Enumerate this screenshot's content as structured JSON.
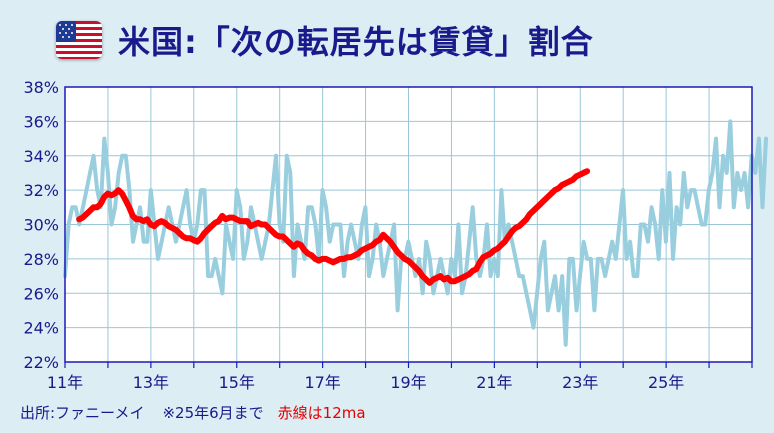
{
  "title": "米国:「次の転居先は賃貸」割合",
  "footer": {
    "source": "出所:ファニーメイ",
    "note": "※25年6月まで",
    "red_note": "赤線は12ma"
  },
  "colors": {
    "title": "#1a1a8c",
    "raw_series": "#99cede",
    "ma_series": "#ff0000",
    "axis": "#1a1ab8",
    "grid": "#9ac7d8",
    "background": "#dcedf4"
  },
  "chart_data": {
    "type": "line",
    "xlabel": "",
    "ylabel": "",
    "x_range": [
      2011.0,
      2027.0
    ],
    "ylim": [
      22,
      38
    ],
    "y_ticks": [
      "22%",
      "24%",
      "26%",
      "28%",
      "30%",
      "32%",
      "34%",
      "36%",
      "38%"
    ],
    "x_ticks": [
      {
        "x": 2011,
        "label": "11年"
      },
      {
        "x": 2013,
        "label": "13年"
      },
      {
        "x": 2015,
        "label": "15年"
      },
      {
        "x": 2017,
        "label": "17年"
      },
      {
        "x": 2019,
        "label": "19年"
      },
      {
        "x": 2021,
        "label": "21年"
      },
      {
        "x": 2023,
        "label": "23年"
      },
      {
        "x": 2025,
        "label": "25年"
      }
    ],
    "grid": true,
    "series": [
      {
        "color": "#99cede",
        "x_start": 2011.0,
        "step": 0.0833,
        "values": [
          27,
          30,
          31,
          31,
          30,
          31,
          32,
          33,
          34,
          32,
          31,
          35,
          33,
          30,
          31,
          33,
          34,
          34,
          32,
          29,
          30,
          31,
          29,
          29,
          32,
          30,
          28,
          29,
          30,
          31,
          30,
          29,
          30,
          31,
          32,
          30,
          29,
          30,
          32,
          32,
          27,
          27,
          28,
          27,
          26,
          30,
          29,
          28,
          32,
          31,
          28,
          29,
          31,
          30,
          29,
          28,
          29,
          30,
          32,
          34,
          30,
          29,
          34,
          33,
          27,
          30,
          29,
          28,
          31,
          31,
          30,
          28,
          32,
          31,
          29,
          30,
          30,
          30,
          27,
          29,
          30,
          29,
          28,
          30,
          31,
          27,
          28,
          30,
          29,
          27,
          28,
          29,
          30,
          25,
          28,
          28,
          29,
          28,
          27,
          28,
          26,
          29,
          28,
          26,
          27,
          28,
          27,
          26,
          28,
          27,
          30,
          26,
          27,
          29,
          31,
          28,
          27,
          28,
          30,
          27,
          28,
          27,
          32,
          29,
          30,
          29,
          28,
          27,
          27,
          26,
          25,
          24,
          26,
          28,
          29,
          25,
          26,
          27,
          25,
          27,
          23,
          28,
          28,
          25,
          27,
          29,
          28,
          28,
          25,
          28,
          28,
          27,
          28,
          29,
          28,
          30,
          32,
          28,
          29,
          27,
          27,
          30,
          30,
          29,
          31,
          30,
          28,
          32,
          29,
          33,
          28,
          31,
          30,
          33,
          31,
          32,
          32,
          31,
          30,
          30,
          32,
          33,
          35,
          31,
          34,
          33,
          36,
          31,
          33,
          32,
          33,
          31,
          34,
          33,
          35,
          31,
          35
        ]
      },
      {
        "color": "#ff0000",
        "x_start": 2011.33,
        "step": 0.0833,
        "values": [
          30.3,
          30.4,
          30.6,
          30.8,
          31.0,
          31.0,
          31.2,
          31.6,
          31.8,
          31.7,
          31.8,
          32.0,
          31.8,
          31.4,
          31.0,
          30.5,
          30.3,
          30.3,
          30.2,
          30.3,
          30.0,
          29.9,
          30.1,
          30.2,
          30.1,
          29.9,
          29.8,
          29.7,
          29.5,
          29.3,
          29.2,
          29.2,
          29.1,
          29.0,
          29.2,
          29.5,
          29.7,
          29.9,
          30.1,
          30.2,
          30.5,
          30.3,
          30.4,
          30.4,
          30.3,
          30.2,
          30.2,
          30.2,
          29.9,
          30.0,
          30.1,
          30.0,
          30.0,
          29.8,
          29.6,
          29.4,
          29.3,
          29.3,
          29.1,
          28.9,
          28.7,
          28.9,
          28.8,
          28.5,
          28.3,
          28.2,
          28.0,
          27.9,
          28.0,
          28.0,
          27.9,
          27.8,
          27.9,
          28.0,
          28.0,
          28.1,
          28.1,
          28.2,
          28.3,
          28.5,
          28.6,
          28.7,
          28.8,
          29.0,
          29.1,
          29.4,
          29.2,
          29.0,
          28.7,
          28.4,
          28.2,
          28.0,
          27.9,
          27.7,
          27.5,
          27.3,
          27.0,
          26.8,
          26.6,
          26.8,
          26.9,
          27.0,
          26.8,
          26.9,
          26.7,
          26.7,
          26.8,
          26.9,
          27.0,
          27.1,
          27.3,
          27.4,
          27.8,
          28.1,
          28.2,
          28.3,
          28.5,
          28.6,
          28.8,
          29.0,
          29.3,
          29.6,
          29.8,
          29.9,
          30.1,
          30.3,
          30.6,
          30.8,
          31.0,
          31.2,
          31.4,
          31.6,
          31.8,
          32.0,
          32.1,
          32.3,
          32.4,
          32.5,
          32.6,
          32.8,
          32.9,
          33.0,
          33.1
        ]
      }
    ]
  }
}
